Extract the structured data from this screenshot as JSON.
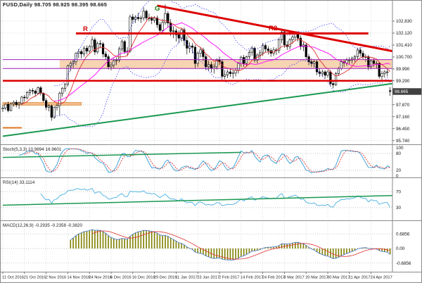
{
  "window": {
    "title": "FUSD,Daily  98.705 98.925 98.395 98.665"
  },
  "chart_data": {
    "type": "candlestick",
    "instrument": "FUSD",
    "timeframe": "Daily",
    "title": "FUSD,Daily  98.705 98.925 98.395 98.665",
    "last_price": "98.665",
    "price_range": [
      95.55,
      104.1
    ],
    "grid": true,
    "price_ticks": [
      "102.830",
      "102.120",
      "101.410",
      "100.700",
      "99.990",
      "99.290",
      "98.580",
      "97.870",
      "97.160",
      "96.450",
      "95.740"
    ],
    "date_ticks": [
      "11 Oct 2016",
      "21 Oct 2016",
      "2 Nov 2016",
      "14 Nov 2016",
      "24 Nov 2016",
      "6 Dec 2016",
      "16 Dec 2016",
      "29 Dec 2016",
      "11 Jan 2017",
      "23 Jan 2017",
      "2 Feb 2017",
      "14 Feb 2017",
      "24 Feb 2017",
      "8 Mar 2017",
      "20 Mar 2017",
      "30 Mar 2017",
      "11 Apr 2017",
      "24 Apr 2017"
    ],
    "annotations": {
      "g": "G",
      "r": "R",
      "r2": "R2"
    },
    "panels": {
      "stoch": {
        "label": "Stoch(5,3,3) 10.9894 16.9601",
        "ticks": [
          "100",
          "80",
          "20",
          "0"
        ],
        "levels": [
          80,
          20
        ]
      },
      "rsi": {
        "label": "RSI(14) 33.1114",
        "ticks": [
          "70",
          "30"
        ],
        "levels": [
          70,
          30
        ]
      },
      "macd": {
        "label": "MACD(12,26,9) -0.2935 -0.2358 -0.3820",
        "ticks": [
          "0.6856",
          "0.00",
          "-0.6856"
        ],
        "levels": [
          0.6856,
          0,
          -0.6856
        ]
      }
    },
    "overlays": {
      "hlines": [
        {
          "price": 102.1,
          "from": 27,
          "to": 135,
          "color": "#dd0000",
          "width": 3
        },
        {
          "price": 99.29,
          "from": 0,
          "to": 144,
          "color": "#dd0000",
          "width": 2.5
        },
        {
          "price": 100.55,
          "from": 0,
          "to": 144,
          "color": "#a020c0",
          "width": 1
        },
        {
          "price": 100.02,
          "from": 0,
          "to": 144,
          "color": "#a020c0",
          "width": 1
        },
        {
          "price": 96.5,
          "from": 0,
          "to": 7,
          "color": "#e07820",
          "width": 2
        }
      ],
      "trendlines": [
        {
          "i1": 57,
          "p1": 103.75,
          "i2": 144,
          "p2": 101.05,
          "color": "#dd0000",
          "width": 3
        },
        {
          "i1": 0,
          "p1": 96.0,
          "i2": 144,
          "p2": 99.12,
          "color": "#1a9850",
          "width": 2
        }
      ],
      "zones": [
        {
          "i1": 21,
          "i2": 144,
          "p1": 100.03,
          "p2": 100.56,
          "fill": "#f6cda4",
          "stroke": "none"
        },
        {
          "i1": 0,
          "i2": 29,
          "p1": 97.84,
          "p2": 98.0,
          "fill": "#f2b073",
          "stroke": "#d98c3f"
        }
      ],
      "stoch_trend": {
        "i1": 0,
        "v1": 66,
        "i2": 88,
        "v2": 84,
        "color": "#1a9850",
        "width": 1.5
      },
      "rsi_trend": {
        "i1": 0,
        "v1": 36,
        "i2": 144,
        "v2": 60,
        "color": "#1a9850",
        "width": 1.5
      }
    },
    "colors": {
      "grid": "#cfcfcf",
      "bull": "#ffffff",
      "bear": "#000000",
      "ma_fast": "#e03030",
      "ma_mid": "#ff00ff",
      "bb": "#4040ff",
      "stoch": "#2e9bd6",
      "stoch_signal": "#e03030",
      "rsi": "#58b6e4",
      "macd_line": "#4472c4",
      "macd_signal": "#e03030",
      "macd_hist": "#808000",
      "tag_bg": "#404040",
      "frame": "#8a8a8a",
      "level": "#b0b0b0"
    },
    "ohlc": [
      [
        97.62,
        97.85,
        97.45,
        97.68
      ],
      [
        97.68,
        97.95,
        97.55,
        97.9
      ],
      [
        97.9,
        98.05,
        97.42,
        97.52
      ],
      [
        97.52,
        97.98,
        97.48,
        97.92
      ],
      [
        97.92,
        98.12,
        97.75,
        98.02
      ],
      [
        98.02,
        98.15,
        97.72,
        97.88
      ],
      [
        97.88,
        98.05,
        97.62,
        97.95
      ],
      [
        97.95,
        98.4,
        97.85,
        98.32
      ],
      [
        98.32,
        98.45,
        98.05,
        98.28
      ],
      [
        98.28,
        98.68,
        98.18,
        98.6
      ],
      [
        98.6,
        98.82,
        98.42,
        98.72
      ],
      [
        98.72,
        98.85,
        98.48,
        98.68
      ],
      [
        98.68,
        98.78,
        98.35,
        98.55
      ],
      [
        98.55,
        98.95,
        98.45,
        98.88
      ],
      [
        98.88,
        98.98,
        98.42,
        98.55
      ],
      [
        98.55,
        98.62,
        98.02,
        98.12
      ],
      [
        98.12,
        98.25,
        97.55,
        97.72
      ],
      [
        97.72,
        97.92,
        97.48,
        97.8
      ],
      [
        97.8,
        97.88,
        96.92,
        97.12
      ],
      [
        97.12,
        97.78,
        97.02,
        97.7
      ],
      [
        97.7,
        97.92,
        97.52,
        97.82
      ],
      [
        97.82,
        98.65,
        97.2,
        98.55
      ],
      [
        98.55,
        98.92,
        98.35,
        98.85
      ],
      [
        98.85,
        99.15,
        98.65,
        99.08
      ],
      [
        99.08,
        100.25,
        98.95,
        100.18
      ],
      [
        100.18,
        100.45,
        99.85,
        100.32
      ],
      [
        100.32,
        100.55,
        100.05,
        100.42
      ],
      [
        100.42,
        100.98,
        100.22,
        100.92
      ],
      [
        100.92,
        101.18,
        100.65,
        101.02
      ],
      [
        101.02,
        101.15,
        100.62,
        100.88
      ],
      [
        100.88,
        101.35,
        100.72,
        101.22
      ],
      [
        101.22,
        101.38,
        100.85,
        101.05
      ],
      [
        101.05,
        101.42,
        100.92,
        101.32
      ],
      [
        101.32,
        101.92,
        101.12,
        101.72
      ],
      [
        101.72,
        101.85,
        100.82,
        101.0
      ],
      [
        101.0,
        101.62,
        100.88,
        101.5
      ],
      [
        101.5,
        101.7,
        101.22,
        101.48
      ],
      [
        101.48,
        101.58,
        100.68,
        100.88
      ],
      [
        100.88,
        101.05,
        100.52,
        100.72
      ],
      [
        100.72,
        100.85,
        99.95,
        100.12
      ],
      [
        100.12,
        100.42,
        99.92,
        100.22
      ],
      [
        100.22,
        100.62,
        100.02,
        100.48
      ],
      [
        100.48,
        100.68,
        100.22,
        100.52
      ],
      [
        100.52,
        101.32,
        100.38,
        101.18
      ],
      [
        101.18,
        101.75,
        101.02,
        101.62
      ],
      [
        101.62,
        101.72,
        100.88,
        101.02
      ],
      [
        101.02,
        101.28,
        100.78,
        101.05
      ],
      [
        101.05,
        103.22,
        100.95,
        103.08
      ],
      [
        103.08,
        103.25,
        102.68,
        102.92
      ],
      [
        102.92,
        103.18,
        102.72,
        103.05
      ],
      [
        103.05,
        103.32,
        102.85,
        102.98
      ],
      [
        102.98,
        103.15,
        102.72,
        103.02
      ],
      [
        103.02,
        103.65,
        102.85,
        103.42
      ],
      [
        103.42,
        103.52,
        102.88,
        103.02
      ],
      [
        103.02,
        103.28,
        102.82,
        103.0
      ],
      [
        103.0,
        103.12,
        102.65,
        102.88
      ],
      [
        102.88,
        103.12,
        102.72,
        103.02
      ],
      [
        103.02,
        103.15,
        102.42,
        102.62
      ],
      [
        102.62,
        102.78,
        102.05,
        102.28
      ],
      [
        102.28,
        102.95,
        102.15,
        102.75
      ],
      [
        102.75,
        103.82,
        102.62,
        103.28
      ],
      [
        103.28,
        103.42,
        102.45,
        102.72
      ],
      [
        102.72,
        102.95,
        101.95,
        102.22
      ],
      [
        102.22,
        102.52,
        101.82,
        102.25
      ],
      [
        102.25,
        102.38,
        101.62,
        102.02
      ],
      [
        102.02,
        102.28,
        101.52,
        101.82
      ],
      [
        101.82,
        102.42,
        101.62,
        102.32
      ],
      [
        102.32,
        102.45,
        101.35,
        101.68
      ],
      [
        101.68,
        101.92,
        100.85,
        101.22
      ],
      [
        101.22,
        101.58,
        100.95,
        101.35
      ],
      [
        101.35,
        101.52,
        100.92,
        101.28
      ],
      [
        101.28,
        101.42,
        100.05,
        100.32
      ],
      [
        100.32,
        101.02,
        100.12,
        100.92
      ],
      [
        100.92,
        101.28,
        100.68,
        101.12
      ],
      [
        101.12,
        101.25,
        100.45,
        100.72
      ],
      [
        100.72,
        100.92,
        99.92,
        100.12
      ],
      [
        100.12,
        100.48,
        99.85,
        100.25
      ],
      [
        100.25,
        100.42,
        99.78,
        100.02
      ],
      [
        100.02,
        100.32,
        99.72,
        100.12
      ],
      [
        100.12,
        100.62,
        99.95,
        100.52
      ],
      [
        100.52,
        100.72,
        100.22,
        100.42
      ],
      [
        100.42,
        100.58,
        99.42,
        99.55
      ],
      [
        99.55,
        99.92,
        99.38,
        99.65
      ],
      [
        99.65,
        99.95,
        99.45,
        99.82
      ],
      [
        99.82,
        99.98,
        99.52,
        99.72
      ],
      [
        99.72,
        99.92,
        99.42,
        99.75
      ],
      [
        99.75,
        100.02,
        99.55,
        99.92
      ],
      [
        99.92,
        100.42,
        99.72,
        100.32
      ],
      [
        100.32,
        100.78,
        100.12,
        100.68
      ],
      [
        100.68,
        100.82,
        100.12,
        100.32
      ],
      [
        100.32,
        100.78,
        100.15,
        100.72
      ],
      [
        100.72,
        101.12,
        100.52,
        100.98
      ],
      [
        100.98,
        101.35,
        100.78,
        101.22
      ],
      [
        101.22,
        101.32,
        100.38,
        100.52
      ],
      [
        100.52,
        100.92,
        100.32,
        100.82
      ],
      [
        100.82,
        101.12,
        100.58,
        100.95
      ],
      [
        100.95,
        101.52,
        100.78,
        101.38
      ],
      [
        101.38,
        101.48,
        100.98,
        101.18
      ],
      [
        101.18,
        101.35,
        100.85,
        101.08
      ],
      [
        101.08,
        101.22,
        100.72,
        100.92
      ],
      [
        100.92,
        101.28,
        100.75,
        101.12
      ],
      [
        101.12,
        101.25,
        100.82,
        101.08
      ],
      [
        101.08,
        101.82,
        100.92,
        101.72
      ],
      [
        101.72,
        102.25,
        101.52,
        102.18
      ],
      [
        102.18,
        102.32,
        101.25,
        101.42
      ],
      [
        101.42,
        101.65,
        101.12,
        101.32
      ],
      [
        101.32,
        101.82,
        101.15,
        101.72
      ],
      [
        101.72,
        102.02,
        101.48,
        101.88
      ],
      [
        101.88,
        102.18,
        101.68,
        102.08
      ],
      [
        102.08,
        102.22,
        101.62,
        101.82
      ],
      [
        101.82,
        101.98,
        101.12,
        101.32
      ],
      [
        101.32,
        101.58,
        101.05,
        101.42
      ],
      [
        101.42,
        101.52,
        100.52,
        100.72
      ],
      [
        100.72,
        100.88,
        100.22,
        100.42
      ],
      [
        100.42,
        100.62,
        100.12,
        100.32
      ],
      [
        100.32,
        100.55,
        100.08,
        100.42
      ],
      [
        100.42,
        100.52,
        99.62,
        99.82
      ],
      [
        99.82,
        100.02,
        99.52,
        99.72
      ],
      [
        99.72,
        99.95,
        99.55,
        99.82
      ],
      [
        99.82,
        99.92,
        99.42,
        99.62
      ],
      [
        99.62,
        99.92,
        99.48,
        99.82
      ],
      [
        99.82,
        99.92,
        98.95,
        99.12
      ],
      [
        99.12,
        99.32,
        98.85,
        99.05
      ],
      [
        99.05,
        99.82,
        98.98,
        99.72
      ],
      [
        99.72,
        100.12,
        99.58,
        100.02
      ],
      [
        100.02,
        100.52,
        99.92,
        100.42
      ],
      [
        100.42,
        100.55,
        100.12,
        100.35
      ],
      [
        100.35,
        100.65,
        100.18,
        100.52
      ],
      [
        100.52,
        100.68,
        100.28,
        100.52
      ],
      [
        100.52,
        100.72,
        100.32,
        100.62
      ],
      [
        100.62,
        100.82,
        100.42,
        100.72
      ],
      [
        100.72,
        101.25,
        100.55,
        101.12
      ],
      [
        101.12,
        101.28,
        100.72,
        100.92
      ],
      [
        100.92,
        101.08,
        100.58,
        100.72
      ],
      [
        100.72,
        100.88,
        100.42,
        100.72
      ],
      [
        100.72,
        100.82,
        99.92,
        100.12
      ],
      [
        100.12,
        100.58,
        99.98,
        100.48
      ],
      [
        100.48,
        100.62,
        100.12,
        100.32
      ],
      [
        100.32,
        100.48,
        100.02,
        100.32
      ],
      [
        100.32,
        100.42,
        99.42,
        99.55
      ],
      [
        99.55,
        99.88,
        99.35,
        99.72
      ],
      [
        99.72,
        99.92,
        99.48,
        99.82
      ],
      [
        99.82,
        99.98,
        99.55,
        99.82
      ],
      [
        98.705,
        98.925,
        98.395,
        98.665
      ]
    ]
  }
}
